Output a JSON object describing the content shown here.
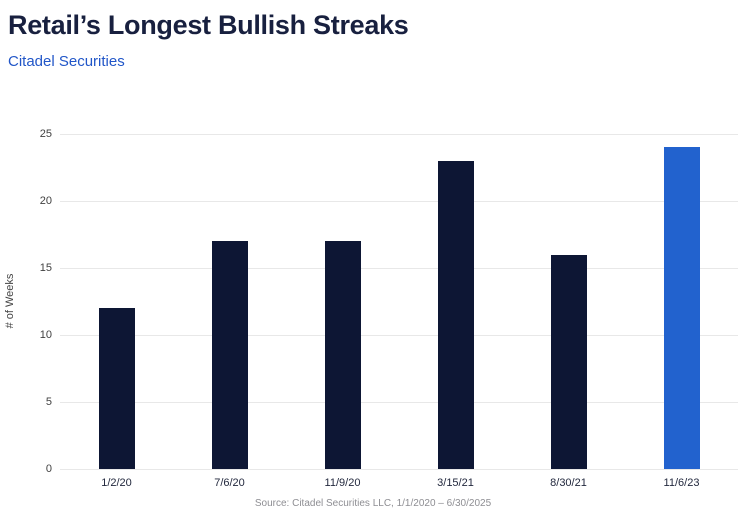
{
  "header": {
    "title": "Retail’s Longest Bullish Streaks",
    "subtitle": "Citadel Securities"
  },
  "chart_data": {
    "type": "bar",
    "title": "Retail’s Longest Bullish Streaks",
    "subtitle": "Citadel Securities",
    "categories": [
      "1/2/20",
      "7/6/20",
      "11/9/20",
      "3/15/21",
      "8/30/21",
      "11/6/23"
    ],
    "values": [
      12,
      17,
      17,
      23,
      16,
      24
    ],
    "xlabel": "",
    "ylabel": "# of Weeks",
    "ylim": [
      0,
      25
    ],
    "yticks": [
      0,
      5,
      10,
      15,
      20,
      25
    ],
    "grid": "horizontal",
    "legend": "none",
    "highlight_index": 5,
    "colors": {
      "bar": "#0D1634",
      "highlight_bar": "#2262CE",
      "title": "#18203F",
      "subtitle": "#2156C8",
      "gridline": "#E8E8E8",
      "tick_text": "#414141"
    }
  },
  "footer": {
    "source": "Source: Citadel Securities LLC, 1/1/2020 – 6/30/2025"
  }
}
